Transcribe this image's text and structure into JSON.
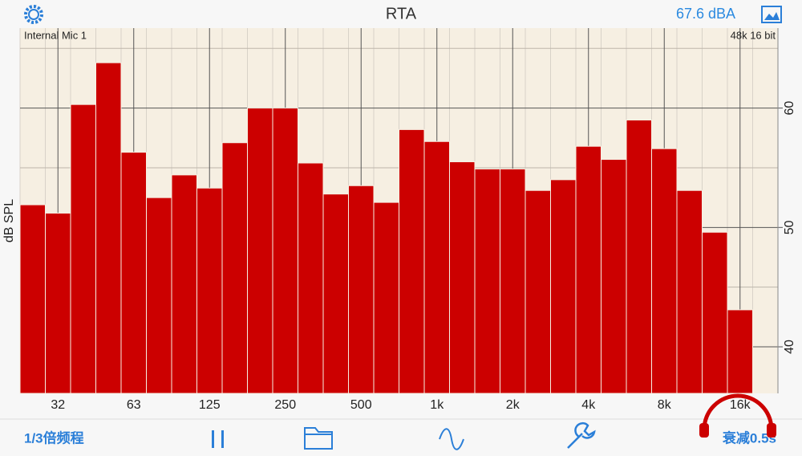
{
  "header": {
    "title": "RTA",
    "level": "67.6 dBA"
  },
  "chart_data": {
    "type": "bar",
    "input": "Internal Mic 1",
    "format": "48k 16 bit",
    "y_label": "dB SPL",
    "categories": [
      null,
      "32",
      null,
      null,
      "63",
      null,
      null,
      "125",
      null,
      null,
      "250",
      null,
      null,
      "500",
      null,
      null,
      "1k",
      null,
      null,
      "2k",
      null,
      null,
      "4k",
      null,
      null,
      "8k",
      null,
      null,
      "16k",
      null
    ],
    "values": [
      51.9,
      51.2,
      60.3,
      63.8,
      56.3,
      52.5,
      54.4,
      53.3,
      57.1,
      60.0,
      60.0,
      55.4,
      52.8,
      53.5,
      52.1,
      58.2,
      57.2,
      55.5,
      54.9,
      54.9,
      53.1,
      54.0,
      56.8,
      55.7,
      59.0,
      56.6,
      53.1,
      49.6,
      43.1,
      null
    ],
    "color": "#cc0000",
    "ylim": [
      36.1,
      66.7
    ],
    "yticks": [
      40,
      50,
      60
    ],
    "minor_yticks": [
      45,
      55,
      65
    ],
    "grid": true
  },
  "toolbar": {
    "bands": "1/3倍频程",
    "decay": "衰减0.5s"
  }
}
